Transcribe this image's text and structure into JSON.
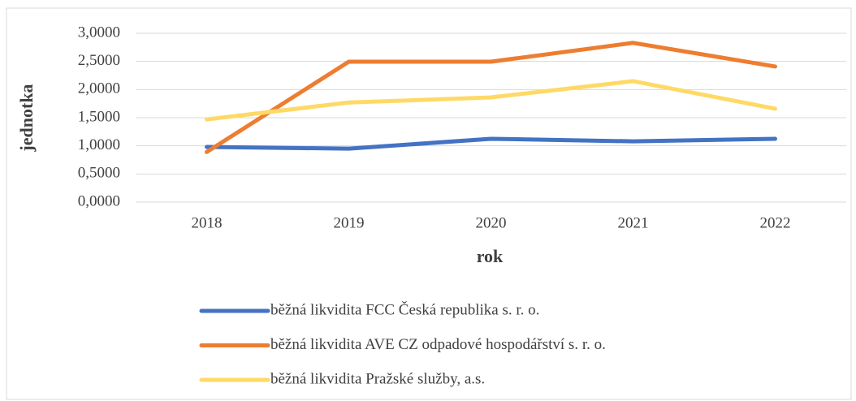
{
  "chart_data": {
    "type": "line",
    "y_label": "jednotka",
    "x_label": "rok",
    "categories": [
      "2018",
      "2019",
      "2020",
      "2021",
      "2022"
    ],
    "series": [
      {
        "name": "běžná likvidita FCC Česká republika s. r. o.",
        "color": "#4472c4",
        "values": [
          0.98,
          0.95,
          1.125,
          1.08,
          1.125
        ]
      },
      {
        "name": "běžná likvidita AVE CZ odpadové hospodářství s. r. o.",
        "color": "#ed7d31",
        "values": [
          0.89,
          2.495,
          2.495,
          2.83,
          2.41
        ]
      },
      {
        "name": "běžná likvidita Pražské služby, a.s.",
        "color": "#ffd966",
        "values": [
          1.47,
          1.77,
          1.86,
          2.15,
          1.66
        ]
      }
    ],
    "ylim": [
      0,
      3
    ],
    "yticks": [
      {
        "value": 0,
        "label": "0,0000"
      },
      {
        "value": 0.5,
        "label": "0,5000"
      },
      {
        "value": 1,
        "label": "1,0000"
      },
      {
        "value": 1.5,
        "label": "1,5000"
      },
      {
        "value": 2,
        "label": "2,0000"
      },
      {
        "value": 2.5,
        "label": "2,5000"
      },
      {
        "value": 3,
        "label": "3,0000"
      }
    ],
    "grid": true,
    "legend": "bottom"
  }
}
